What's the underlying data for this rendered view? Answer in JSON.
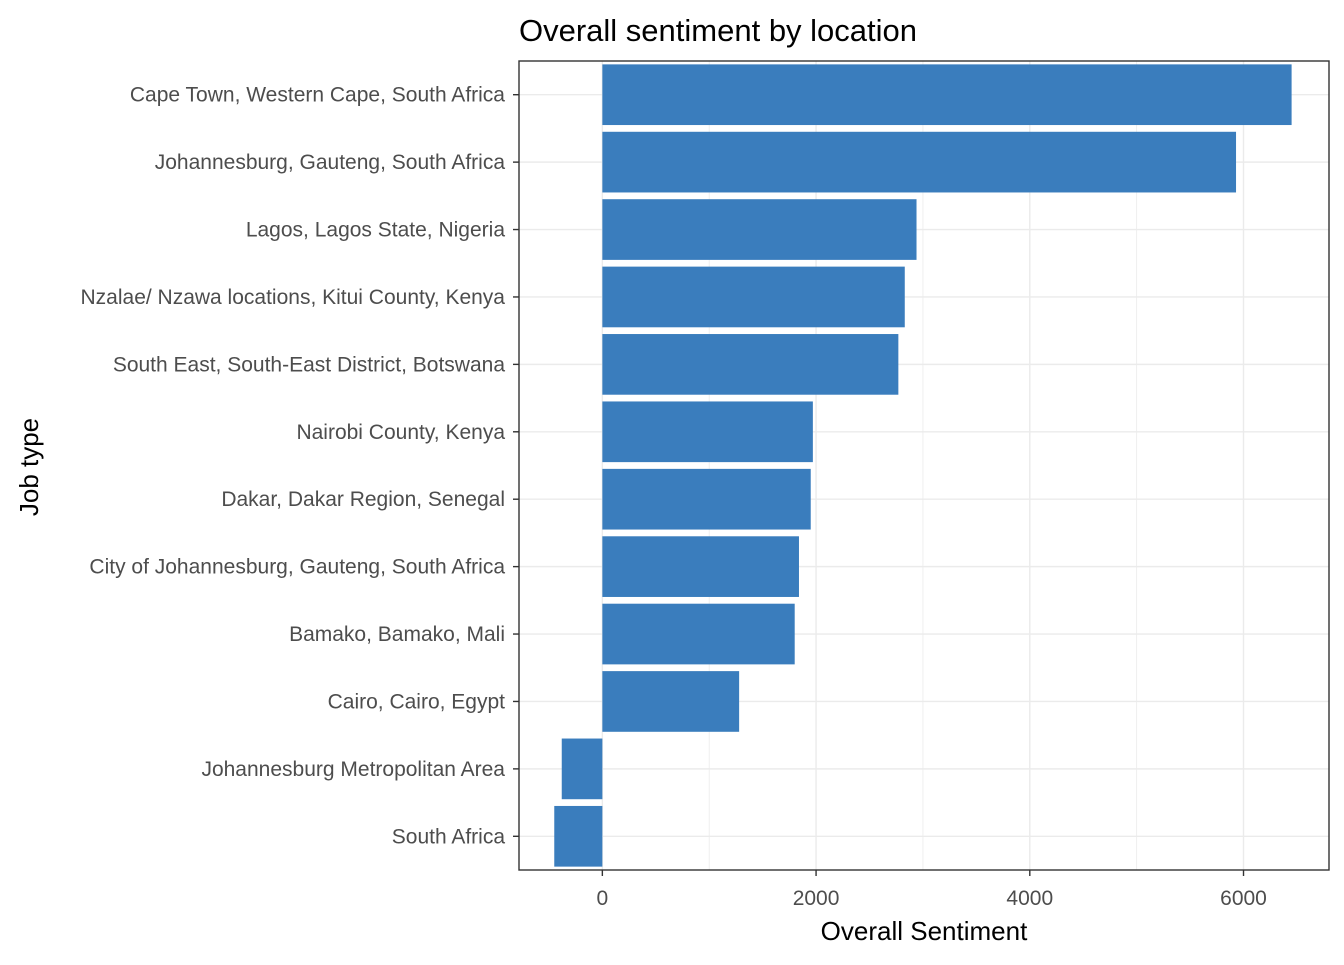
{
  "chart_data": {
    "type": "bar",
    "orientation": "horizontal",
    "title": "Overall sentiment by location",
    "xlabel": "Overall Sentiment",
    "ylabel": "Job type",
    "categories": [
      "Cape Town, Western Cape, South Africa",
      "Johannesburg, Gauteng, South Africa",
      "Lagos, Lagos State, Nigeria",
      "Nzalae/ Nzawa locations, Kitui County, Kenya",
      "South East, South-East District, Botswana",
      "Nairobi County, Kenya",
      "Dakar, Dakar Region, Senegal",
      "City of Johannesburg, Gauteng, South Africa",
      "Bamako, Bamako, Mali",
      "Cairo, Cairo, Egypt",
      "Johannesburg Metropolitan Area",
      "South Africa"
    ],
    "values": [
      6450,
      5930,
      2940,
      2830,
      2770,
      1970,
      1950,
      1840,
      1800,
      1280,
      -380,
      -450
    ],
    "xlim": [
      -780,
      6800
    ],
    "xticks": [
      0,
      2000,
      4000,
      6000
    ],
    "xtick_labels": [
      "0",
      "2000",
      "4000",
      "6000"
    ],
    "grid": true,
    "legend": "none",
    "colors": {
      "bar": "#3a7dbd",
      "grid": "#ebebeb",
      "panel_border": "#333333"
    }
  }
}
